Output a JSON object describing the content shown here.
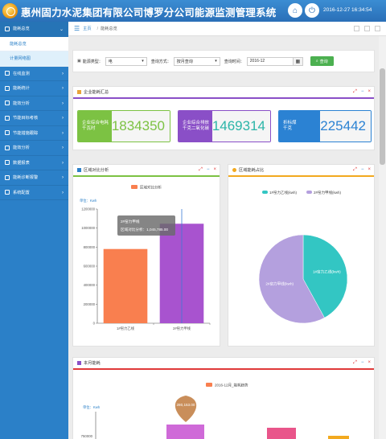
{
  "header": {
    "title": "惠州固力水泥集团有限公司博罗分公司能源监测管理系统",
    "datetime": "2016-12-27 16:34:54"
  },
  "sidebar": {
    "items": [
      {
        "label": "能耗总览",
        "expanded": true
      },
      {
        "label": "在线监测"
      },
      {
        "label": "能耗统计"
      },
      {
        "label": "能效分析"
      },
      {
        "label": "节能目标考核"
      },
      {
        "label": "节能措施跟踪"
      },
      {
        "label": "能效分析"
      },
      {
        "label": "数据报表"
      },
      {
        "label": "能耗诊断报警"
      },
      {
        "label": "系统配置"
      }
    ],
    "subitems": [
      {
        "label": "能耗总览",
        "active": false
      },
      {
        "label": "计量网络图",
        "active": true
      }
    ]
  },
  "breadcrumb": {
    "home": "主页",
    "current": "能耗总览"
  },
  "filter": {
    "type_label": "能源类型：",
    "type_value": "电",
    "mode_label": "查询方式：",
    "mode_value": "按月查询",
    "time_label": "查询时间：",
    "time_value": "2016-12",
    "query_label": "查询"
  },
  "summary": {
    "title": "企业能耗汇总",
    "kpis": [
      {
        "label_line1": "企业综合电耗",
        "label_line2": "千瓦时",
        "value": "1834350",
        "color": "#7cc243"
      },
      {
        "label_line1": "企业综合排放",
        "label_line2": "千克二氧化碳",
        "value": "1469314",
        "color": "#8a4fc7"
      },
      {
        "label_line1": "折标煤",
        "label_line2": "千克",
        "value": "225442",
        "color": "#2b82d3"
      }
    ]
  },
  "compare_panel": {
    "title": "区域对比分析"
  },
  "ratio_panel": {
    "title": "区域能耗占比"
  },
  "monthly_panel": {
    "title": "本月能耗"
  },
  "chart_data": [
    {
      "type": "bar",
      "legend": [
        "区域对比分析"
      ],
      "unit_label": "单位：Kwh",
      "categories": [
        "1#窑力乙线",
        "2#窑力甲线"
      ],
      "values": [
        780000,
        1045785
      ],
      "ylim": [
        0,
        1200000
      ],
      "yticks": [
        "0",
        "200000",
        "400000",
        "600000",
        "800000",
        "1000000",
        "1200000"
      ],
      "bar_colors": [
        "#f97f4f",
        "#a853cf"
      ],
      "tooltip": {
        "title": "2#窑力甲线",
        "line": "区域对比分析：1,045,785.00"
      }
    },
    {
      "type": "pie",
      "legend": [
        "1#窑力乙线(kwh)",
        "2#窑力甲线(kwh)"
      ],
      "labels": [
        "1#窑力乙线(kwh)",
        "2#窑力甲线(kwh)"
      ],
      "values": [
        42,
        58
      ],
      "colors": [
        "#33c6c3",
        "#b4a0de"
      ]
    },
    {
      "type": "bar",
      "legend": [
        "2016-12月_能耗趋势"
      ],
      "unit_label": "单位：Kwh",
      "visible_tick": "750000",
      "tooltip_value": "280,153.00"
    }
  ]
}
